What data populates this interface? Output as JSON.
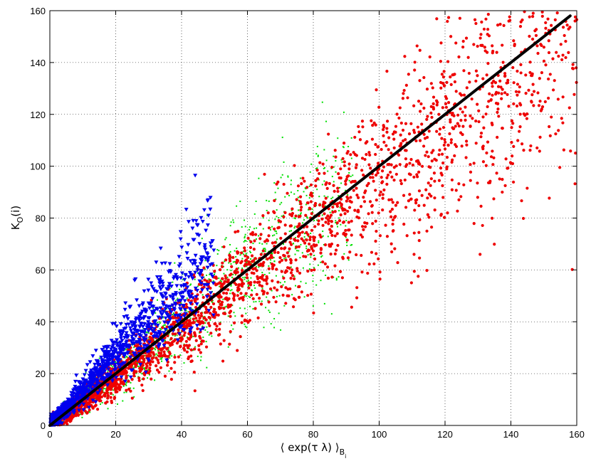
{
  "chart_data": {
    "type": "scatter",
    "title": "",
    "xlabel": {
      "main": "⟨ exp(τ λ) ⟩",
      "sub": "B",
      "subsub": "i"
    },
    "ylabel": {
      "main": "K",
      "sub": "O",
      "suffix": "(i)"
    },
    "xlim": [
      0,
      160
    ],
    "ylim": [
      0,
      160
    ],
    "xticks": [
      0,
      20,
      40,
      60,
      80,
      100,
      120,
      140,
      160
    ],
    "yticks": [
      0,
      20,
      40,
      60,
      80,
      100,
      120,
      140,
      160
    ],
    "grid": true,
    "grid_style": "dotted",
    "legend": "none",
    "series": [
      {
        "color": "#00e000",
        "marker": "point",
        "count": 1500,
        "x_range": [
          0,
          92
        ],
        "slope": 1.02,
        "spread": 0.2
      },
      {
        "color": "#ee0000",
        "marker": "dot",
        "count": 2800,
        "x_range": [
          0,
          160
        ],
        "slope": 0.95,
        "spread": 0.17
      },
      {
        "color": "#0000ee",
        "marker": "triangle-down",
        "count": 1200,
        "x_range": [
          0,
          50
        ],
        "slope": 1.35,
        "spread": 0.18
      },
      {
        "color": "#000000",
        "marker": "line-y=x",
        "x_range": [
          0,
          158
        ],
        "y_range": [
          0,
          158
        ]
      }
    ]
  }
}
